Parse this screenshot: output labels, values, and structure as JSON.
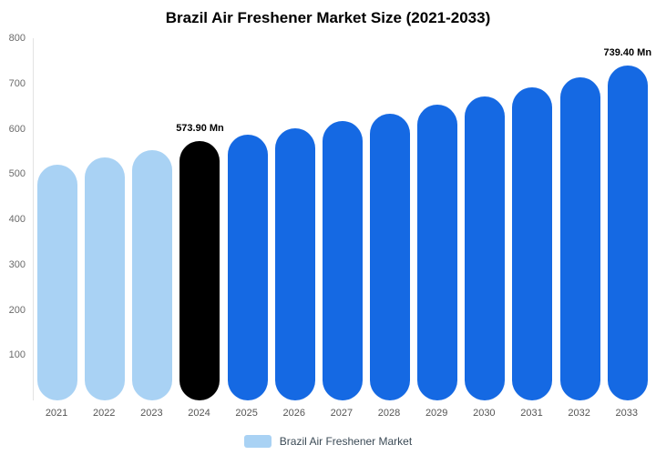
{
  "title": "Brazil Air Freshener Market Size (2021-2033)",
  "legend": {
    "label": "Brazil Air Freshener Market",
    "swatch_color": "#a9d2f4"
  },
  "colors": {
    "light_blue": "#a9d2f4",
    "highlight_black": "#000000",
    "bright_blue": "#1569e3"
  },
  "chart_data": {
    "type": "bar",
    "title": "Brazil Air Freshener Market Size (2021-2033)",
    "categories": [
      "2021",
      "2022",
      "2023",
      "2024",
      "2025",
      "2026",
      "2027",
      "2028",
      "2029",
      "2030",
      "2031",
      "2032",
      "2033"
    ],
    "values": [
      520,
      537,
      552,
      573.9,
      586,
      601,
      617,
      634,
      653,
      672,
      692,
      713,
      739.4
    ],
    "bar_colors": [
      "#a9d2f4",
      "#a9d2f4",
      "#a9d2f4",
      "#000000",
      "#1569e3",
      "#1569e3",
      "#1569e3",
      "#1569e3",
      "#1569e3",
      "#1569e3",
      "#1569e3",
      "#1569e3",
      "#1569e3"
    ],
    "data_labels": {
      "3": "573.90 Mn",
      "12": "739.40 Mn"
    },
    "xlabel": "",
    "ylabel": "",
    "ylim": [
      0,
      800
    ],
    "yticks": [
      800,
      700,
      600,
      500,
      400,
      300,
      200,
      100
    ],
    "grid": false,
    "legend_position": "bottom",
    "legend_entries": [
      "Brazil Air Freshener Market"
    ]
  }
}
